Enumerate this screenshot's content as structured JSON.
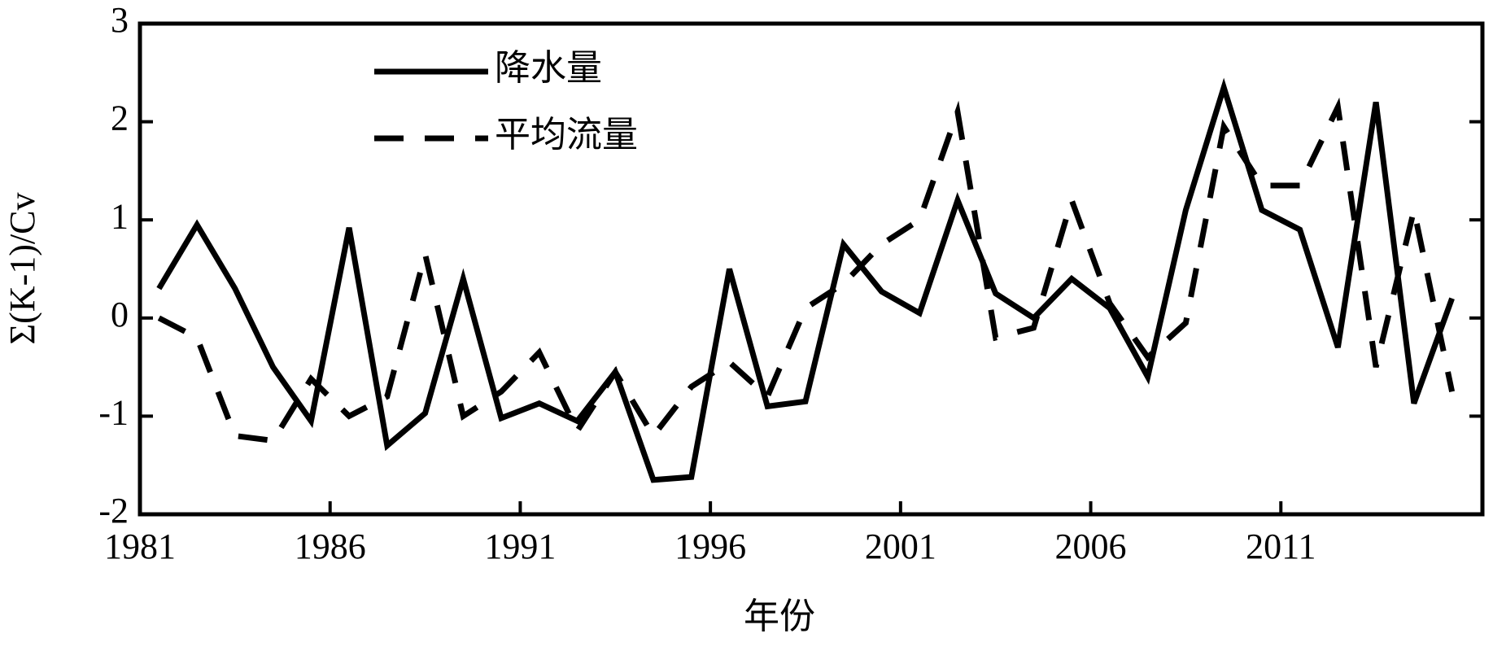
{
  "chart_data": {
    "type": "line",
    "xlabel": "年份",
    "ylabel": "Σ(K-1)/Cv",
    "x": [
      1981.5,
      1982.5,
      1983.5,
      1984.5,
      1985.5,
      1986.5,
      1987.5,
      1988.5,
      1989.5,
      1990.5,
      1991.5,
      1992.5,
      1993.5,
      1994.5,
      1995.5,
      1996.5,
      1997.5,
      1998.5,
      1999.5,
      2000.5,
      2001.5,
      2002.5,
      2003.5,
      2004.5,
      2005.5,
      2006.5,
      2007.5,
      2008.5,
      2009.5,
      2010.5,
      2011.5,
      2012.5,
      2013.5,
      2014.5,
      2015.5
    ],
    "series": [
      {
        "name": "降水量",
        "color": "#000000",
        "dash": false,
        "values": [
          0.3,
          0.95,
          0.3,
          -0.5,
          -1.05,
          0.92,
          -1.3,
          -0.97,
          0.4,
          -1.02,
          -0.87,
          -1.05,
          -0.55,
          -1.65,
          -1.62,
          0.5,
          -0.9,
          -0.85,
          0.75,
          0.27,
          0.05,
          1.2,
          0.25,
          0.0,
          0.4,
          0.1,
          -0.6,
          1.1,
          2.35,
          1.1,
          0.9,
          -0.3,
          2.2,
          -0.87,
          0.2
        ]
      },
      {
        "name": "平均流量",
        "color": "#000000",
        "dash": true,
        "values": [
          0.0,
          -0.2,
          -1.2,
          -1.25,
          -0.62,
          -1.0,
          -0.8,
          0.65,
          -1.0,
          -0.75,
          -0.35,
          -1.15,
          -0.55,
          -1.2,
          -0.7,
          -0.45,
          -0.8,
          0.1,
          0.35,
          0.75,
          1.0,
          2.1,
          -0.2,
          -0.1,
          1.2,
          0.15,
          -0.4,
          -0.05,
          1.95,
          1.35,
          1.35,
          2.15,
          -0.5,
          1.1,
          -0.75
        ]
      }
    ],
    "xlim": [
      1981,
      2016.3
    ],
    "xticks": [
      1981,
      1986,
      1991,
      1996,
      2001,
      2006,
      2011
    ],
    "ylim": [
      -2,
      3
    ],
    "yticks": [
      -2,
      -1,
      0,
      1,
      2,
      3
    ],
    "legend": "upper left"
  }
}
